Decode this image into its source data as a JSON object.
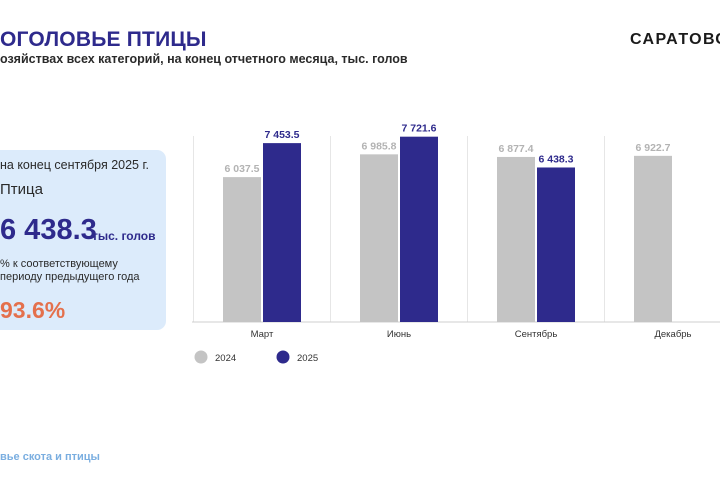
{
  "header": {
    "title": "ОГОЛОВЬЕ ПТИЦЫ",
    "subtitle": "озяйствах всех категорий, на конец отчетного месяца, тыс. голов",
    "brand": "САРАТОВС"
  },
  "card": {
    "date_label": "на конец сентября 2025 г.",
    "indicator": "Птица",
    "value": "6 438.3",
    "unit": "тыс. голов",
    "comparison_label": "% к соответствующему периоду предыдущего года",
    "percent": "93.6%"
  },
  "footer": {
    "link_text": "вье скота и птицы"
  },
  "colors": {
    "accent": "#2e2a8c",
    "series_2024": "#c4c4c4",
    "series_2025": "#2e2a8c",
    "card_bg": "#dcebfb",
    "percent": "#e4704c",
    "link": "#7aaee0"
  },
  "chart_data": {
    "type": "bar",
    "categories": [
      "Март",
      "Июнь",
      "Сентябрь",
      "Декабрь"
    ],
    "series": [
      {
        "name": "2024",
        "values": [
          6037.5,
          6985.8,
          6877.4,
          6922.7
        ],
        "labels": [
          "6 037.5",
          "6 985.8",
          "6 877.4",
          "6 922.7"
        ],
        "color": "#c4c4c4"
      },
      {
        "name": "2025",
        "values": [
          7453.5,
          7721.6,
          6438.3,
          null
        ],
        "labels": [
          "7 453.5",
          "7 721.6",
          "6 438.3",
          ""
        ],
        "color": "#2e2a8c"
      }
    ],
    "xlabel": "",
    "ylabel": "",
    "ylim": [
      0,
      8500
    ],
    "grid": true,
    "legend": "bottom-left"
  }
}
